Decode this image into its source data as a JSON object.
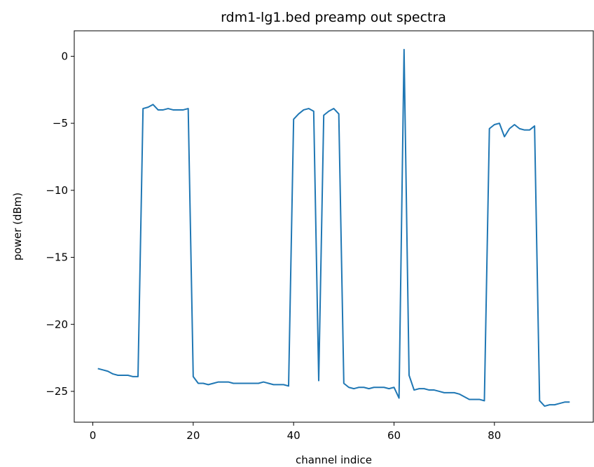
{
  "chart_data": {
    "type": "line",
    "title": "rdm1-lg1.bed preamp  out spectra",
    "xlabel": "channel indice",
    "ylabel": "power (dBm)",
    "xlim": [
      -3.7,
      99.7
    ],
    "ylim": [
      -27.3,
      1.9
    ],
    "xticks": [
      0,
      20,
      40,
      60,
      80
    ],
    "yticks": [
      0,
      -5,
      -10,
      -15,
      -20,
      -25
    ],
    "xtick_labels": [
      "0",
      "20",
      "40",
      "60",
      "80"
    ],
    "ytick_labels": [
      "0",
      "−5",
      "−10",
      "−15",
      "−20",
      "−25"
    ],
    "grid": false,
    "legend": "none",
    "series": [
      {
        "color": "#1f77b4",
        "x": [
          1,
          2,
          3,
          4,
          5,
          6,
          7,
          8,
          9,
          10,
          11,
          12,
          13,
          14,
          15,
          16,
          17,
          18,
          19,
          20,
          21,
          22,
          23,
          24,
          25,
          26,
          27,
          28,
          29,
          30,
          31,
          32,
          33,
          34,
          35,
          36,
          37,
          38,
          39,
          40,
          41,
          42,
          43,
          44,
          45,
          46,
          47,
          48,
          49,
          50,
          51,
          52,
          53,
          54,
          55,
          56,
          57,
          58,
          59,
          60,
          61,
          62,
          63,
          64,
          65,
          66,
          67,
          68,
          69,
          70,
          71,
          72,
          73,
          74,
          75,
          76,
          77,
          78,
          79,
          80,
          81,
          82,
          83,
          84,
          85,
          86,
          87,
          88,
          89,
          90,
          91,
          92,
          93,
          94,
          95
        ],
        "y": [
          -23.3,
          -23.4,
          -23.5,
          -23.7,
          -23.8,
          -23.8,
          -23.8,
          -23.9,
          -23.9,
          -3.9,
          -3.8,
          -3.6,
          -4.0,
          -4.0,
          -3.9,
          -4.0,
          -4.0,
          -4.0,
          -3.9,
          -23.9,
          -24.4,
          -24.4,
          -24.5,
          -24.4,
          -24.3,
          -24.3,
          -24.3,
          -24.4,
          -24.4,
          -24.4,
          -24.4,
          -24.4,
          -24.4,
          -24.3,
          -24.4,
          -24.5,
          -24.5,
          -24.5,
          -24.6,
          -4.7,
          -4.3,
          -4.0,
          -3.9,
          -4.1,
          -24.2,
          -4.4,
          -4.1,
          -3.9,
          -4.3,
          -24.4,
          -24.7,
          -24.8,
          -24.7,
          -24.7,
          -24.8,
          -24.7,
          -24.7,
          -24.7,
          -24.8,
          -24.7,
          -25.5,
          0.5,
          -23.8,
          -24.9,
          -24.8,
          -24.8,
          -24.9,
          -24.9,
          -25.0,
          -25.1,
          -25.1,
          -25.1,
          -25.2,
          -25.4,
          -25.6,
          -25.6,
          -25.6,
          -25.7,
          -5.4,
          -5.1,
          -5.0,
          -6.0,
          -5.4,
          -5.1,
          -5.4,
          -5.5,
          -5.5,
          -5.2,
          -25.7,
          -26.1,
          -26.0,
          -26.0,
          -25.9,
          -25.8,
          -25.8
        ]
      }
    ]
  }
}
